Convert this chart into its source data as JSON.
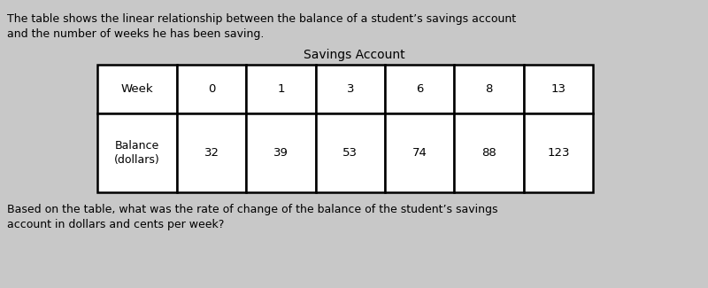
{
  "top_text_line1": "The table shows the linear relationship between the balance of a student’s savings account",
  "top_text_line2": "and the number of weeks he has been saving.",
  "table_title": "Savings Account",
  "row1_label": "Week",
  "row2_label": "Balance\n(dollars)",
  "weeks": [
    "0",
    "1",
    "3",
    "6",
    "8",
    "13"
  ],
  "balances": [
    "32",
    "39",
    "53",
    "74",
    "88",
    "123"
  ],
  "bottom_text_line1": "Based on the table, what was the rate of change of the balance of the student’s savings",
  "bottom_text_line2": "account in dollars and cents per week?",
  "bg_color": "#c8c8c8",
  "table_bg": "#ffffff",
  "border_color": "#000000",
  "text_color": "#000000",
  "font_size_body": 9.0,
  "font_size_table": 9.5,
  "font_size_title": 10.0
}
